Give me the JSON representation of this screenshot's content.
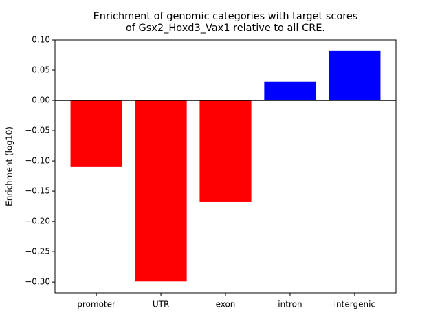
{
  "chart_data": {
    "type": "bar",
    "title": "Enrichment of genomic categories with target scores\nof Gsx2_Hoxd3_Vax1 relative to all CRE.",
    "y_label": "Enrichment (log10)",
    "categories": [
      "promoter",
      "UTR",
      "exon",
      "intron",
      "intergenic"
    ],
    "values": [
      -0.11,
      -0.299,
      -0.168,
      0.031,
      0.082
    ],
    "colors": [
      "#ff0000",
      "#ff0000",
      "#ff0000",
      "#0000ff",
      "#0000ff"
    ],
    "ylim": [
      -0.318,
      0.1
    ],
    "yticks": [
      {
        "value": -0.3,
        "label": "−0.30"
      },
      {
        "value": -0.25,
        "label": "−0.25"
      },
      {
        "value": -0.2,
        "label": "−0.20"
      },
      {
        "value": -0.15,
        "label": "−0.15"
      },
      {
        "value": -0.1,
        "label": "−0.10"
      },
      {
        "value": -0.05,
        "label": "−0.05"
      },
      {
        "value": 0,
        "label": "0.00"
      },
      {
        "value": 0.05,
        "label": "0.05"
      },
      {
        "value": 0.1,
        "label": "0.10"
      }
    ],
    "zero_line": true
  }
}
